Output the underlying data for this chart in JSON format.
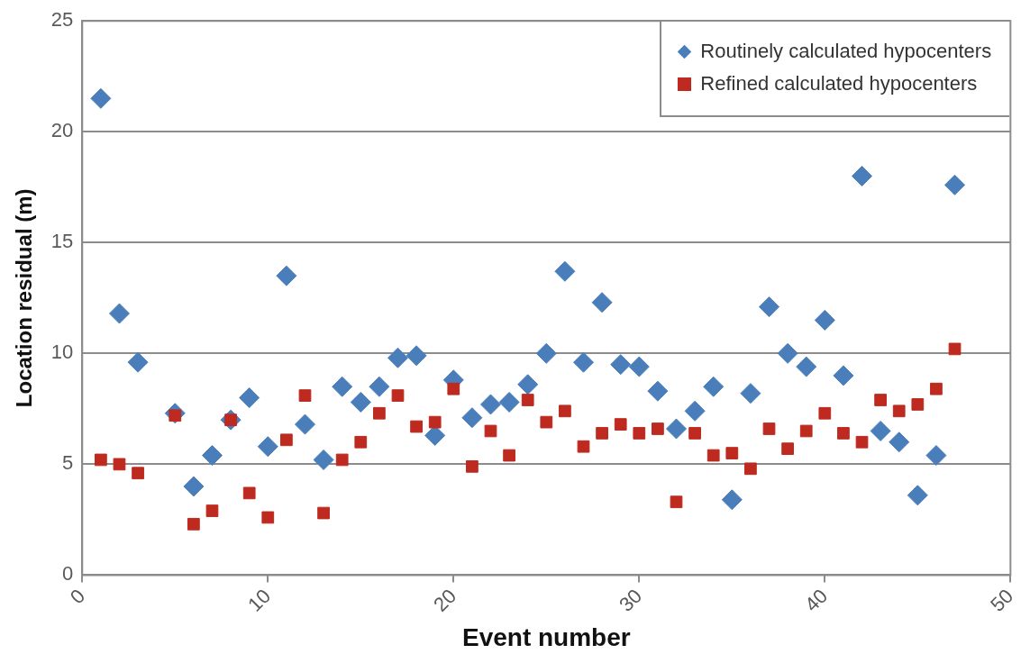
{
  "chart_data": {
    "type": "scatter",
    "xlabel": "Event number",
    "ylabel": "Location residual (m)",
    "xlim": [
      0,
      50
    ],
    "xticks": [
      0,
      10,
      20,
      30,
      40,
      50
    ],
    "ylim": [
      0,
      25
    ],
    "yticks": [
      0,
      5,
      10,
      15,
      20,
      25
    ],
    "grid": "y",
    "legend": "top right",
    "series": [
      {
        "name": "Routinely calculated hypocenters",
        "color": "#4a7ebb",
        "marker": "diamond",
        "x": [
          1,
          2,
          3,
          5,
          6,
          7,
          8,
          9,
          10,
          11,
          12,
          13,
          14,
          15,
          16,
          17,
          18,
          19,
          20,
          21,
          22,
          23,
          24,
          25,
          26,
          27,
          28,
          29,
          30,
          31,
          32,
          33,
          34,
          35,
          36,
          37,
          38,
          39,
          40,
          41,
          42,
          43,
          44,
          45,
          46,
          47
        ],
        "values": [
          21.5,
          11.8,
          9.6,
          7.3,
          4.0,
          5.4,
          7.0,
          8.0,
          5.8,
          13.5,
          6.8,
          5.2,
          8.5,
          7.8,
          8.5,
          9.8,
          9.9,
          6.3,
          8.8,
          7.1,
          7.7,
          7.8,
          8.6,
          10.0,
          13.7,
          9.6,
          12.3,
          9.5,
          9.4,
          8.3,
          6.6,
          7.4,
          8.5,
          3.4,
          8.2,
          12.1,
          10.0,
          9.4,
          11.5,
          9.0,
          18.0,
          6.5,
          6.0,
          3.6,
          5.4,
          17.6
        ]
      },
      {
        "name": "Refined calculated hypocenters",
        "color": "#be2a1f",
        "marker": "square",
        "x": [
          1,
          2,
          3,
          5,
          6,
          7,
          8,
          9,
          10,
          11,
          12,
          13,
          14,
          15,
          16,
          17,
          18,
          19,
          20,
          21,
          22,
          23,
          24,
          25,
          26,
          27,
          28,
          29,
          30,
          31,
          32,
          33,
          34,
          35,
          36,
          37,
          38,
          39,
          40,
          41,
          42,
          43,
          44,
          45,
          46,
          47
        ],
        "values": [
          5.2,
          5.0,
          4.6,
          7.2,
          2.3,
          2.9,
          7.0,
          3.7,
          2.6,
          6.1,
          8.1,
          2.8,
          5.2,
          6.0,
          7.3,
          8.1,
          6.7,
          6.9,
          8.4,
          4.9,
          6.5,
          5.4,
          7.9,
          6.9,
          7.4,
          5.8,
          6.4,
          6.8,
          6.4,
          6.6,
          3.3,
          6.4,
          5.4,
          5.5,
          4.8,
          6.6,
          5.7,
          6.5,
          7.3,
          6.4,
          6.0,
          7.9,
          7.4,
          7.7,
          8.4,
          10.2
        ]
      }
    ]
  }
}
